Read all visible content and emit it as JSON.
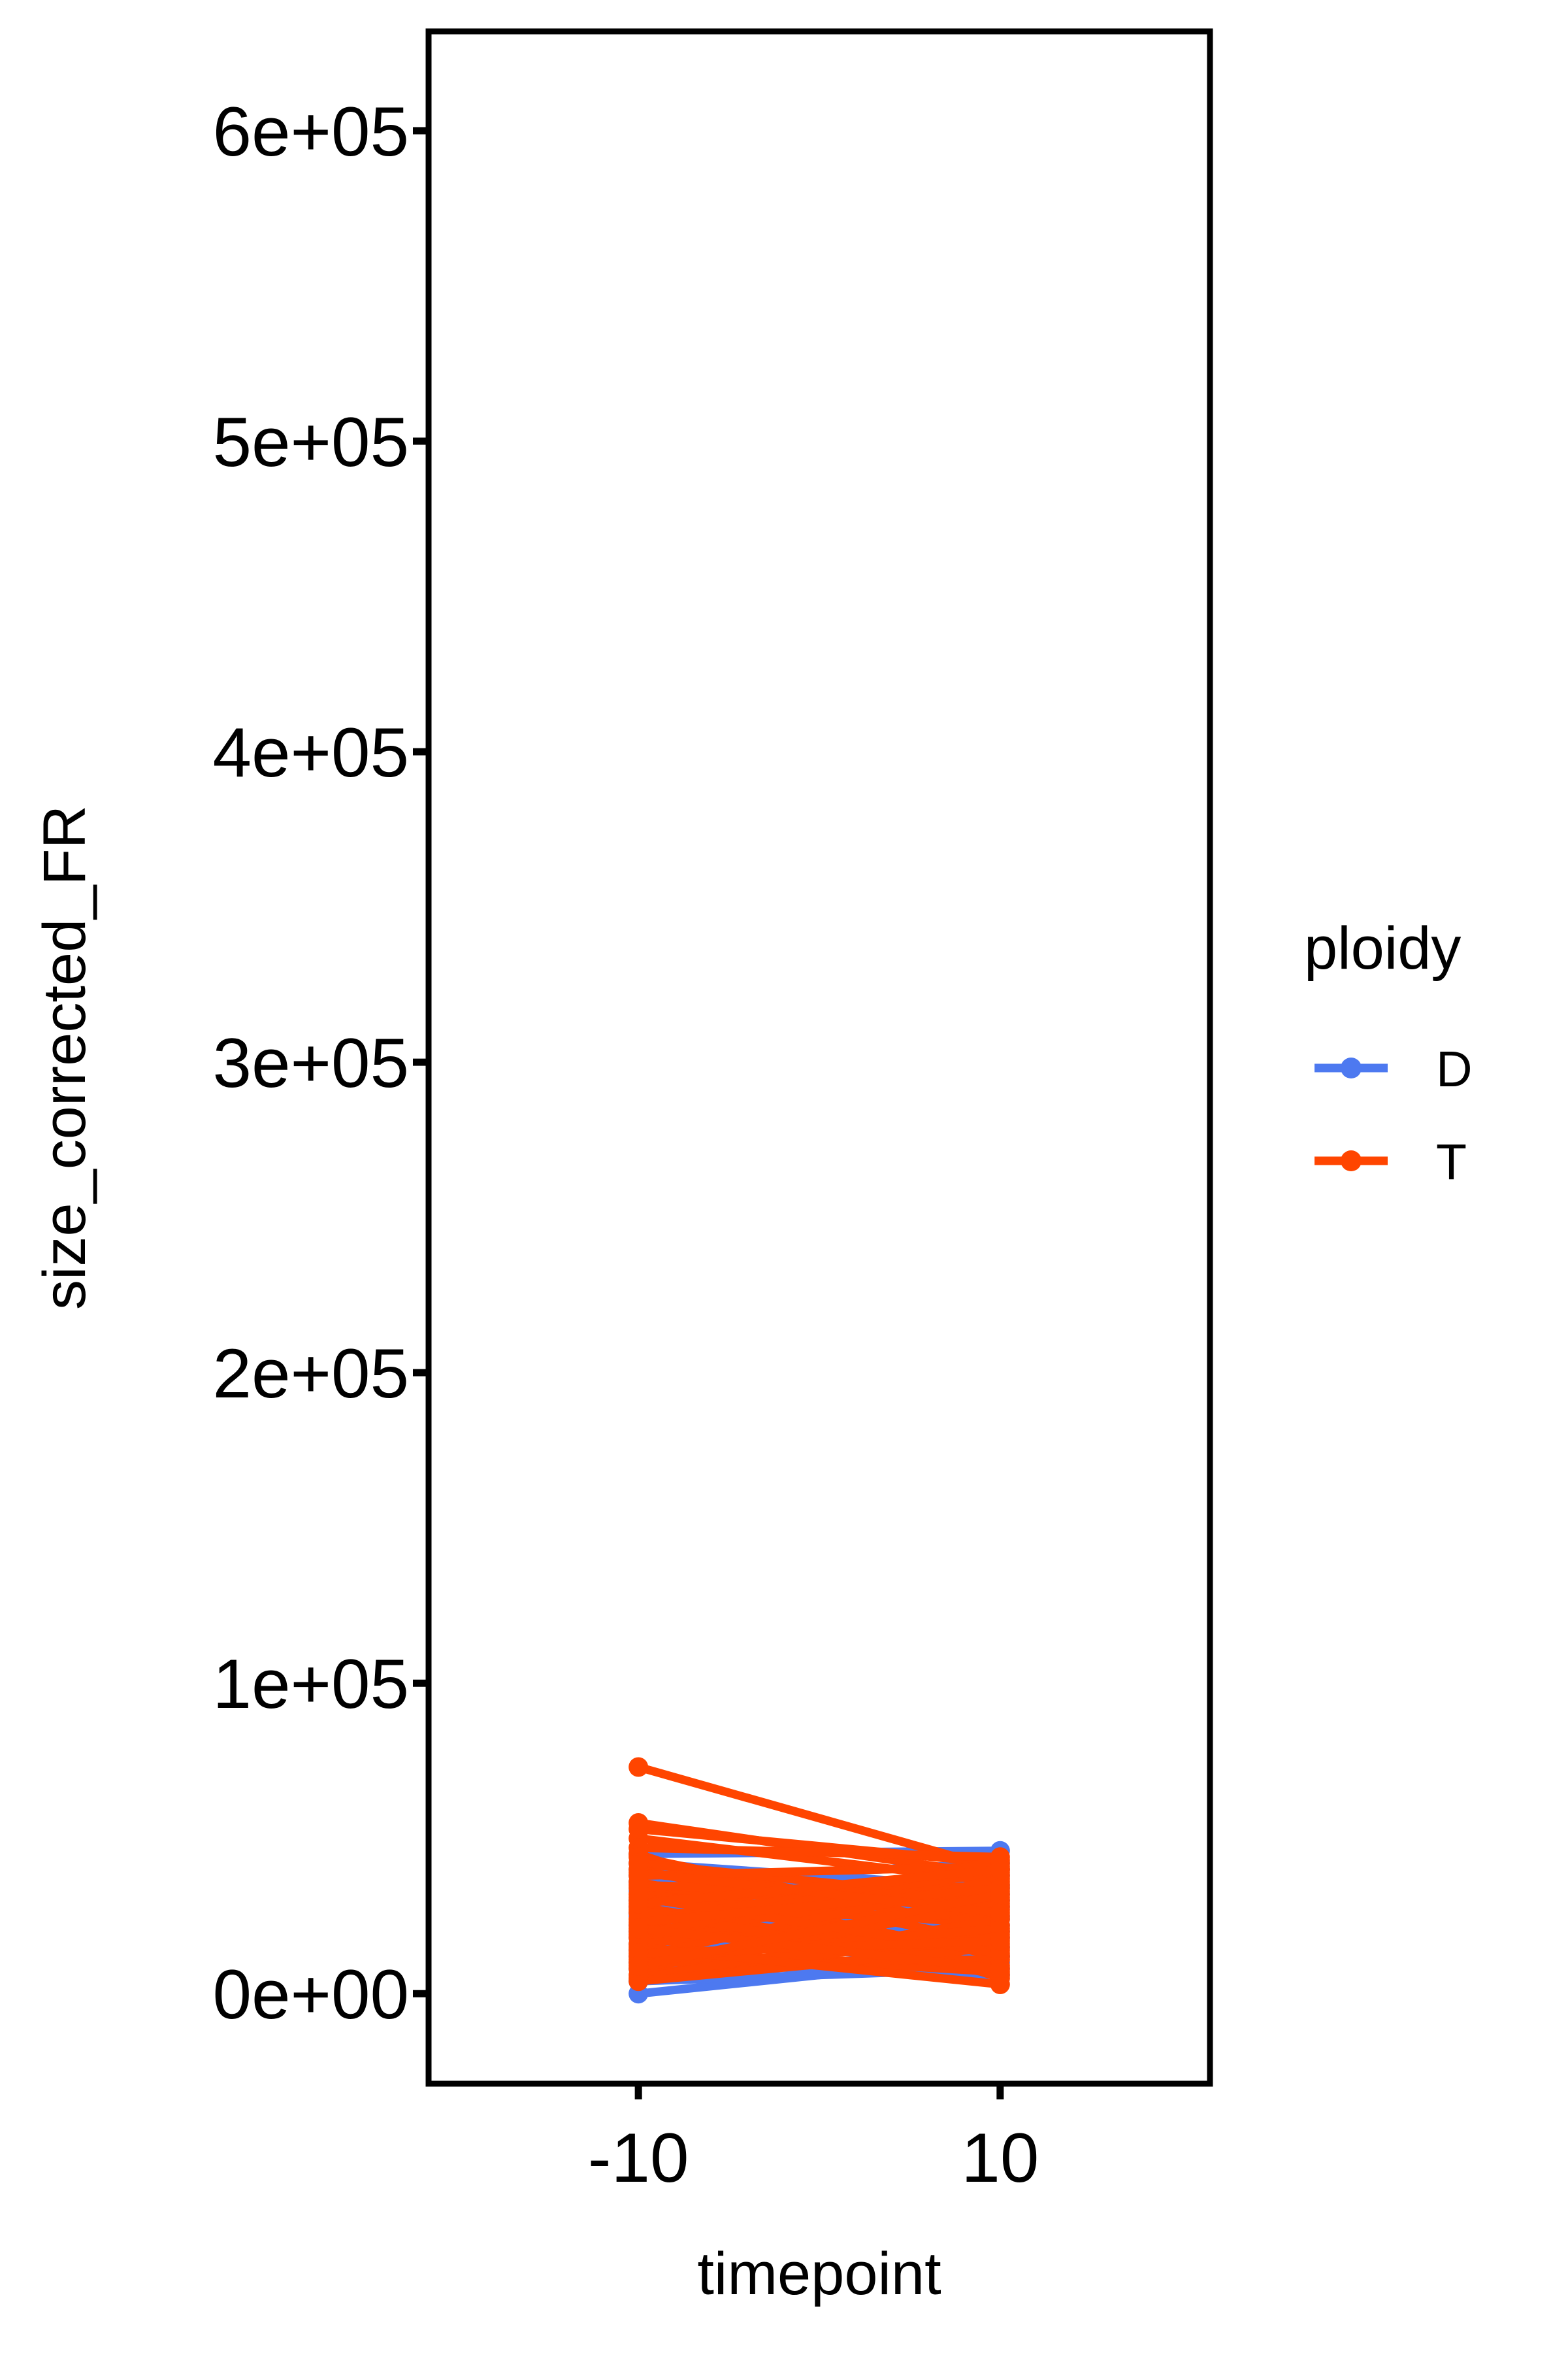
{
  "chart_data": {
    "type": "line",
    "xlabel": "timepoint",
    "ylabel": "size_corrected_FR",
    "x_ticks": [
      -10,
      10
    ],
    "x_tick_labels": [
      "-10",
      "10"
    ],
    "xlim": [
      -21.6,
      21.6
    ],
    "y_ticks": [
      0,
      100000,
      200000,
      300000,
      400000,
      500000,
      600000
    ],
    "y_tick_labels": [
      "0e+00",
      "1e+05",
      "2e+05",
      "3e+05",
      "4e+05",
      "5e+05",
      "6e+05"
    ],
    "ylim": [
      -29000,
      632000
    ],
    "grid": false,
    "legend": {
      "title": "ploidy",
      "placement": "right",
      "entries": [
        {
          "label": "D",
          "color": "#4D79F0"
        },
        {
          "label": "T",
          "color": "#FF4500"
        }
      ]
    },
    "series": [
      {
        "name": "D",
        "color": "#4D79F0",
        "pairs": [
          [
            0,
            12000
          ],
          [
            4000,
            8000
          ],
          [
            10000,
            6000
          ],
          [
            45000,
            46000
          ],
          [
            40000,
            30000
          ],
          [
            36000,
            42000
          ],
          [
            30000,
            20000
          ],
          [
            25000,
            35000
          ],
          [
            20000,
            15000
          ],
          [
            16000,
            28000
          ],
          [
            14000,
            24000
          ],
          [
            22000,
            38000
          ],
          [
            28000,
            12000
          ],
          [
            33000,
            25000
          ],
          [
            38000,
            18000
          ],
          [
            8000,
            32000
          ],
          [
            18000,
            10000
          ],
          [
            26000,
            40000
          ],
          [
            12000,
            22000
          ],
          [
            42000,
            34000
          ]
        ]
      },
      {
        "name": "T",
        "color": "#FF4500",
        "pairs": [
          [
            73000,
            40000
          ],
          [
            55000,
            38000
          ],
          [
            53000,
            42000
          ],
          [
            50000,
            36000
          ],
          [
            47000,
            44000
          ],
          [
            45000,
            5000
          ],
          [
            44000,
            20000
          ],
          [
            42000,
            30000
          ],
          [
            40000,
            16000
          ],
          [
            38000,
            41000
          ],
          [
            36000,
            12000
          ],
          [
            34000,
            28000
          ],
          [
            32000,
            22000
          ],
          [
            30000,
            35000
          ],
          [
            28000,
            9000
          ],
          [
            26000,
            25000
          ],
          [
            24000,
            39000
          ],
          [
            22000,
            14000
          ],
          [
            20000,
            33000
          ],
          [
            18000,
            18000
          ],
          [
            16000,
            27000
          ],
          [
            14000,
            7000
          ],
          [
            12000,
            37000
          ],
          [
            10000,
            11000
          ],
          [
            8000,
            29000
          ],
          [
            6000,
            19000
          ],
          [
            5000,
            24000
          ],
          [
            4000,
            15000
          ],
          [
            15000,
            3000
          ],
          [
            35000,
            31000
          ],
          [
            27000,
            6000
          ],
          [
            19000,
            43000
          ],
          [
            11000,
            21000
          ],
          [
            31000,
            13000
          ],
          [
            23000,
            34000
          ],
          [
            39000,
            26000
          ],
          [
            13000,
            17000
          ],
          [
            29000,
            40000
          ],
          [
            21000,
            8000
          ],
          [
            9000,
            32000
          ]
        ]
      }
    ]
  }
}
